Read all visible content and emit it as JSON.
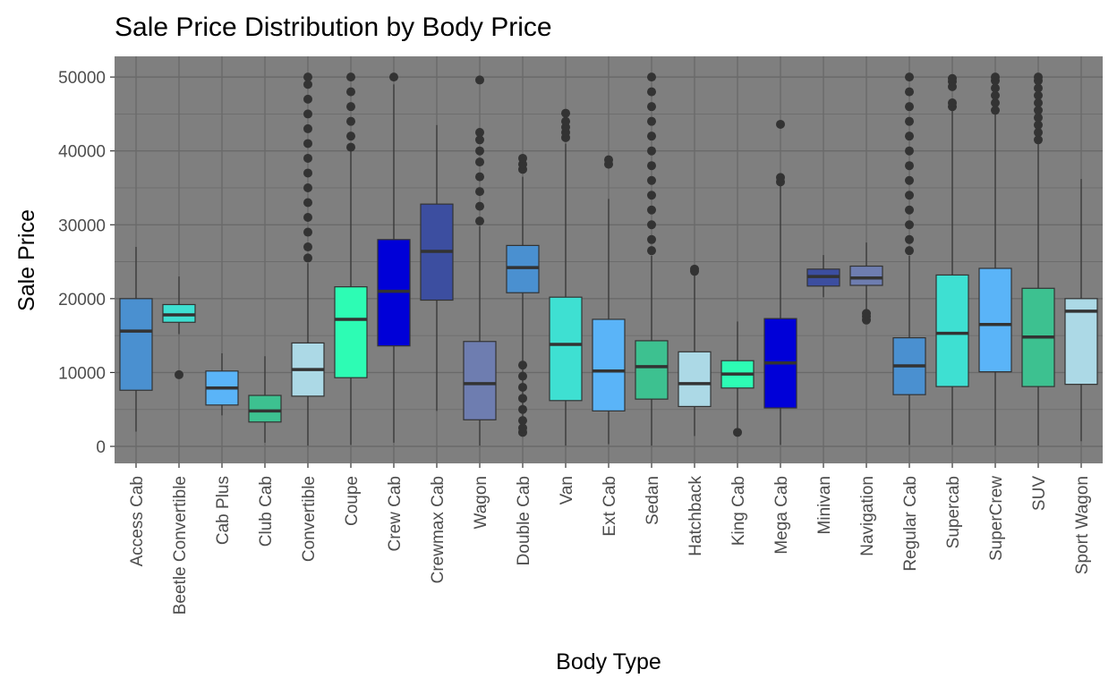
{
  "chart_data": {
    "type": "box",
    "title": "Sale Price Distribution by Body Price",
    "xlabel": "Body Type",
    "ylabel": "Sale Price",
    "ylim": [
      -2300,
      52800
    ],
    "yticks": [
      0,
      10000,
      20000,
      30000,
      40000,
      50000
    ],
    "grid": true,
    "panel_background": "#7f7f7f",
    "grid_color": "#6a6a6a",
    "categories": [
      "Access Cab",
      "Beetle Convertible",
      "Cab Plus",
      "Club Cab",
      "Convertible",
      "Coupe",
      "Crew Cab",
      "Crewmax Cab",
      "Wagon",
      "Double Cab",
      "Van",
      "Ext Cab",
      "Sedan",
      "Hatchback",
      "King Cab",
      "Mega Cab",
      "Minivan",
      "Navigation",
      "Regular Cab",
      "Supercab",
      "SuperCrew",
      "SUV",
      "Sport Wagon"
    ],
    "boxes": [
      {
        "category": "Access Cab",
        "min": 2000,
        "q1": 7600,
        "median": 15600,
        "q3": 20000,
        "max": 27000,
        "outliers": [],
        "color": "#4a90d0"
      },
      {
        "category": "Beetle Convertible",
        "min": 15200,
        "q1": 16800,
        "median": 17800,
        "q3": 19200,
        "max": 23000,
        "outliers": [
          9700
        ],
        "color": "#3ee0d2"
      },
      {
        "category": "Cab Plus",
        "min": 4200,
        "q1": 5600,
        "median": 7900,
        "q3": 10200,
        "max": 12600,
        "outliers": [],
        "color": "#5ab4f8"
      },
      {
        "category": "Club Cab",
        "min": 500,
        "q1": 3300,
        "median": 4800,
        "q3": 6900,
        "max": 12200,
        "outliers": [],
        "color": "#3dc190"
      },
      {
        "category": "Convertible",
        "min": 100,
        "q1": 6800,
        "median": 10400,
        "q3": 14000,
        "max": 24800,
        "outliers": [
          25500,
          27000,
          29000,
          31000,
          33000,
          35000,
          37000,
          39000,
          41000,
          43000,
          45000,
          47000,
          49000,
          50000
        ],
        "color": "#acd9e6"
      },
      {
        "category": "Coupe",
        "min": 200,
        "q1": 9300,
        "median": 17200,
        "q3": 21600,
        "max": 40000,
        "outliers": [
          40500,
          42000,
          44000,
          46000,
          48000,
          50000
        ],
        "color": "#2dfcb4"
      },
      {
        "category": "Crew Cab",
        "min": 500,
        "q1": 13600,
        "median": 21000,
        "q3": 28000,
        "max": 49000,
        "outliers": [
          50000
        ],
        "color": "#0000d8"
      },
      {
        "category": "Crewmax Cab",
        "min": 4800,
        "q1": 19800,
        "median": 26400,
        "q3": 32800,
        "max": 43500,
        "outliers": [],
        "color": "#3c4ea0"
      },
      {
        "category": "Wagon",
        "min": 100,
        "q1": 3600,
        "median": 8500,
        "q3": 14200,
        "max": 29800,
        "outliers": [
          30500,
          32500,
          34500,
          36500,
          38500,
          40000,
          41500,
          42500,
          49600
        ],
        "color": "#6e7db0"
      },
      {
        "category": "Double Cab",
        "min": 3000,
        "q1": 20800,
        "median": 24200,
        "q3": 27200,
        "max": 36500,
        "outliers": [
          1900,
          2500,
          3500,
          5000,
          6500,
          8000,
          9500,
          11000,
          37500,
          38200,
          39000
        ],
        "color": "#4a90d0"
      },
      {
        "category": "Van",
        "min": 100,
        "q1": 6200,
        "median": 13800,
        "q3": 20200,
        "max": 41000,
        "outliers": [
          41800,
          42500,
          43200,
          44000,
          45100
        ],
        "color": "#3ee0d2"
      },
      {
        "category": "Ext Cab",
        "min": 300,
        "q1": 4800,
        "median": 10200,
        "q3": 17200,
        "max": 33500,
        "outliers": [
          38200,
          38800
        ],
        "color": "#5ab4f8"
      },
      {
        "category": "Sedan",
        "min": 100,
        "q1": 6400,
        "median": 10800,
        "q3": 14300,
        "max": 25800,
        "outliers": [
          26500,
          28000,
          30000,
          32000,
          34000,
          36000,
          38000,
          40000,
          42000,
          44000,
          46000,
          48000,
          50000
        ],
        "color": "#3dc190"
      },
      {
        "category": "Hatchback",
        "min": 1400,
        "q1": 5400,
        "median": 8500,
        "q3": 12800,
        "max": 23200,
        "outliers": [
          23700,
          24000
        ],
        "color": "#acd9e6"
      },
      {
        "category": "King Cab",
        "min": 1900,
        "q1": 7900,
        "median": 9800,
        "q3": 11600,
        "max": 16900,
        "outliers": [
          1900
        ],
        "color": "#2dfcb4"
      },
      {
        "category": "Mega Cab",
        "min": 200,
        "q1": 5200,
        "median": 11300,
        "q3": 17300,
        "max": 35400,
        "outliers": [
          35800,
          36400,
          43600
        ],
        "color": "#0000d8"
      },
      {
        "category": "Minivan",
        "min": 20200,
        "q1": 21700,
        "median": 23000,
        "q3": 24000,
        "max": 25900,
        "outliers": [],
        "color": "#3c4ea0"
      },
      {
        "category": "Navigation",
        "min": 18400,
        "q1": 21800,
        "median": 22800,
        "q3": 24400,
        "max": 27600,
        "outliers": [
          17100,
          17600,
          18000
        ],
        "color": "#6e7db0"
      },
      {
        "category": "Regular Cab",
        "min": 200,
        "q1": 7000,
        "median": 10900,
        "q3": 14700,
        "max": 25800,
        "outliers": [
          26500,
          28000,
          30000,
          32000,
          34000,
          36000,
          38000,
          40000,
          42000,
          44000,
          46000,
          48000,
          50000
        ],
        "color": "#4a90d0"
      },
      {
        "category": "Supercab",
        "min": 200,
        "q1": 8100,
        "median": 15300,
        "q3": 23200,
        "max": 45500,
        "outliers": [
          46000,
          46500,
          48700,
          49400,
          49800
        ],
        "color": "#3ee0d2"
      },
      {
        "category": "SuperCrew",
        "min": 100,
        "q1": 10100,
        "median": 16500,
        "q3": 24100,
        "max": 45000,
        "outliers": [
          45500,
          46500,
          47500,
          48500,
          49500,
          50000
        ],
        "color": "#5ab4f8"
      },
      {
        "category": "SUV",
        "min": 100,
        "q1": 8100,
        "median": 14800,
        "q3": 21400,
        "max": 41000,
        "outliers": [
          41500,
          42500,
          43500,
          44500,
          45500,
          46500,
          47500,
          48500,
          49500,
          50000
        ],
        "color": "#3dc190"
      },
      {
        "category": "Sport Wagon",
        "min": 700,
        "q1": 8400,
        "median": 18300,
        "q3": 20000,
        "max": 36200,
        "outliers": [],
        "color": "#acd9e6"
      }
    ]
  }
}
